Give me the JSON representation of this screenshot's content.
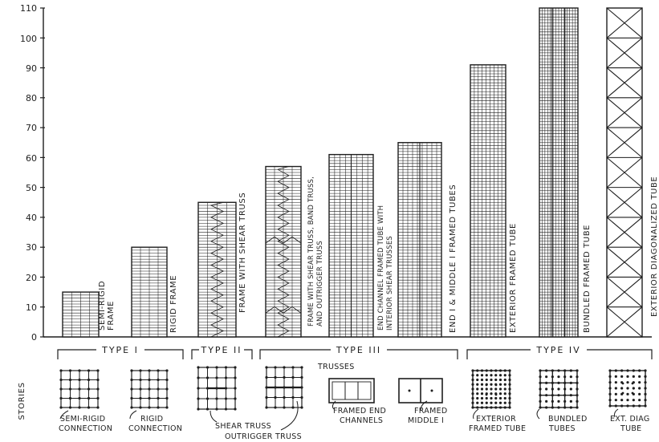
{
  "axis": {
    "ylabel": "STORIES",
    "ticks": [
      "110",
      "100",
      "90",
      "80",
      "70",
      "60",
      "50",
      "40",
      "30",
      "20",
      "10",
      "0"
    ]
  },
  "systems": [
    {
      "label": "SEMI-RIGID FRAME",
      "stories": 15
    },
    {
      "label": "RIGID FRAME",
      "stories": 30
    },
    {
      "label": "FRAME WITH SHEAR TRUSS",
      "stories": 45
    },
    {
      "label": "FRAME WITH SHEAR TRUSS, BAND TRUSS, AND OUTRIGGER TRUSS",
      "stories": 57
    },
    {
      "label": "END CHANNEL FRAMED TUBE WITH INTERIOR SHEAR TRUSSES",
      "stories": 61
    },
    {
      "label": "END I & MIDDLE I FRAMED TUBES",
      "stories": 65
    },
    {
      "label": "EXTERIOR FRAMED TUBE",
      "stories": 91
    },
    {
      "label": "BUNDLED FRAMED TUBE",
      "stories": 110
    },
    {
      "label": "EXTERIOR DIAGONALIZED TUBE",
      "stories": 110
    }
  ],
  "groups": [
    {
      "label": "TYPE I"
    },
    {
      "label": "TYPE II"
    },
    {
      "label": "TYPE III"
    },
    {
      "label": "TYPE IV"
    }
  ],
  "plans": {
    "semi_rigid": [
      "SEMI-RIGID",
      "CONNECTION"
    ],
    "rigid": [
      "RIGID",
      "CONNECTION"
    ],
    "shear_truss": "SHEAR TRUSS",
    "outrigger": "OUTRIGGER TRUSS",
    "trusses": "TRUSSES",
    "framed_end": [
      "FRAMED END",
      "CHANNELS"
    ],
    "framed_middle": [
      "FRAMED",
      "MIDDLE I"
    ],
    "ext_framed": [
      "EXTERIOR",
      "FRAMED TUBE"
    ],
    "bundled": [
      "BUNDLED",
      "TUBES"
    ],
    "ext_diag": [
      "EXT. DIAG",
      "TUBE"
    ]
  },
  "colors": {
    "ink": "#1e1e1e",
    "paper": "#ffffff"
  }
}
